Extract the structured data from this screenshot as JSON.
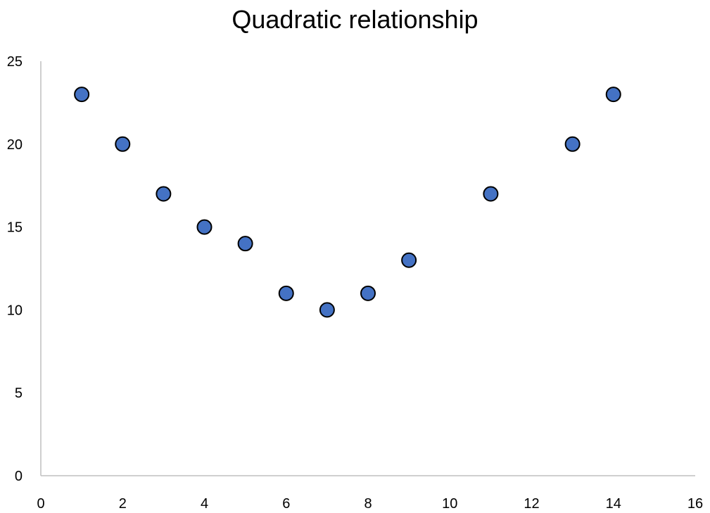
{
  "chart_data": {
    "type": "scatter",
    "title": "Quadratic relationship",
    "xlabel": "",
    "ylabel": "",
    "xlim": [
      0,
      16
    ],
    "ylim": [
      0,
      25
    ],
    "x_ticks": [
      0,
      2,
      4,
      6,
      8,
      10,
      12,
      14,
      16
    ],
    "y_ticks": [
      0,
      5,
      10,
      15,
      20,
      25
    ],
    "grid": false,
    "legend": "none",
    "marker_color": "#4472C4",
    "marker_edge_color": "#000000",
    "axis_color": "#BFBFBF",
    "points": [
      {
        "x": 1,
        "y": 23
      },
      {
        "x": 2,
        "y": 20
      },
      {
        "x": 3,
        "y": 17
      },
      {
        "x": 4,
        "y": 15
      },
      {
        "x": 5,
        "y": 14
      },
      {
        "x": 6,
        "y": 11
      },
      {
        "x": 7,
        "y": 10
      },
      {
        "x": 8,
        "y": 11
      },
      {
        "x": 9,
        "y": 13
      },
      {
        "x": 11,
        "y": 17
      },
      {
        "x": 13,
        "y": 20
      },
      {
        "x": 14,
        "y": 23
      }
    ]
  }
}
